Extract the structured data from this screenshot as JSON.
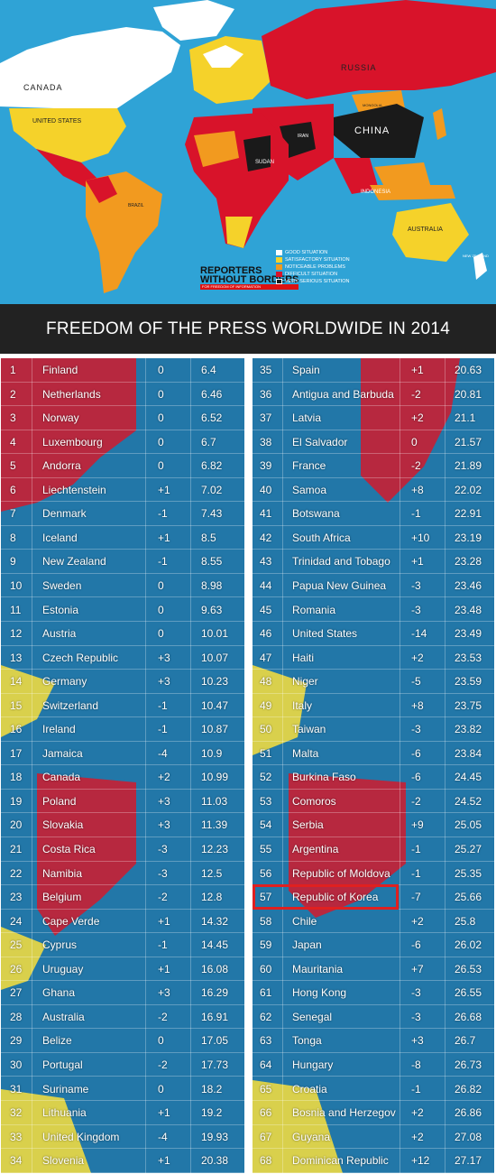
{
  "map": {
    "labels": {
      "russia": "RUSSIA",
      "canada": "CANADA",
      "united_states": "UNITED STATES",
      "china": "CHINA",
      "australia": "AUSTRALIA",
      "indonesia": "INDONESIA",
      "brazil": "BRAZIL",
      "mongolia": "MONGOLIA",
      "sudan": "SUDAN",
      "iran": "IRAN",
      "new_zealand": "NEW ZEALAND"
    },
    "legend": [
      {
        "label": "GOOD SITUATION",
        "color": "#ffffff"
      },
      {
        "label": "SATISFACTORY SITUATION",
        "color": "#f5d22a"
      },
      {
        "label": "NOTICEABLE PROBLEMS",
        "color": "#f29a1f"
      },
      {
        "label": "DIFFICULT SITUATION",
        "color": "#d8132a"
      },
      {
        "label": "VERY SERIOUS SITUATION",
        "color": "#1a1a1a"
      }
    ],
    "logo_line1": "REPORTERS",
    "logo_line2": "WITHOUT BORDERS",
    "logo_tagline": "FOR FREEDOM OF INFORMATION"
  },
  "banner": {
    "title": "FREEDOM OF THE PRESS WORLDWIDE IN 2014"
  },
  "colors": {
    "table_blue": "#2277a8",
    "highlight": "#e02020",
    "banner_bg": "#222222"
  },
  "left_rows": [
    {
      "rank": "1",
      "country": "Finland",
      "change": "0",
      "score": "6.4"
    },
    {
      "rank": "2",
      "country": "Netherlands",
      "change": "0",
      "score": "6.46"
    },
    {
      "rank": "3",
      "country": "Norway",
      "change": "0",
      "score": "6.52"
    },
    {
      "rank": "4",
      "country": "Luxembourg",
      "change": "0",
      "score": "6.7"
    },
    {
      "rank": "5",
      "country": "Andorra",
      "change": "0",
      "score": "6.82"
    },
    {
      "rank": "6",
      "country": "Liechtenstein",
      "change": "+1",
      "score": "7.02"
    },
    {
      "rank": "7",
      "country": "Denmark",
      "change": "-1",
      "score": "7.43"
    },
    {
      "rank": "8",
      "country": "Iceland",
      "change": "+1",
      "score": "8.5"
    },
    {
      "rank": "9",
      "country": "New Zealand",
      "change": "-1",
      "score": "8.55"
    },
    {
      "rank": "10",
      "country": "Sweden",
      "change": "0",
      "score": "8.98"
    },
    {
      "rank": "11",
      "country": "Estonia",
      "change": "0",
      "score": "9.63"
    },
    {
      "rank": "12",
      "country": "Austria",
      "change": "0",
      "score": "10.01"
    },
    {
      "rank": "13",
      "country": "Czech Republic",
      "change": "+3",
      "score": "10.07"
    },
    {
      "rank": "14",
      "country": "Germany",
      "change": "+3",
      "score": "10.23"
    },
    {
      "rank": "15",
      "country": "Switzerland",
      "change": "-1",
      "score": "10.47"
    },
    {
      "rank": "16",
      "country": "Ireland",
      "change": "-1",
      "score": "10.87"
    },
    {
      "rank": "17",
      "country": "Jamaica",
      "change": "-4",
      "score": "10.9"
    },
    {
      "rank": "18",
      "country": "Canada",
      "change": "+2",
      "score": "10.99"
    },
    {
      "rank": "19",
      "country": "Poland",
      "change": "+3",
      "score": "11.03"
    },
    {
      "rank": "20",
      "country": "Slovakia",
      "change": "+3",
      "score": "11.39"
    },
    {
      "rank": "21",
      "country": "Costa Rica",
      "change": "-3",
      "score": "12.23"
    },
    {
      "rank": "22",
      "country": "Namibia",
      "change": "-3",
      "score": "12.5"
    },
    {
      "rank": "23",
      "country": "Belgium",
      "change": "-2",
      "score": "12.8"
    },
    {
      "rank": "24",
      "country": "Cape Verde",
      "change": "+1",
      "score": "14.32"
    },
    {
      "rank": "25",
      "country": "Cyprus",
      "change": "-1",
      "score": "14.45"
    },
    {
      "rank": "26",
      "country": "Uruguay",
      "change": "+1",
      "score": "16.08"
    },
    {
      "rank": "27",
      "country": "Ghana",
      "change": "+3",
      "score": "16.29"
    },
    {
      "rank": "28",
      "country": "Australia",
      "change": "-2",
      "score": "16.91"
    },
    {
      "rank": "29",
      "country": "Belize",
      "change": "0",
      "score": "17.05"
    },
    {
      "rank": "30",
      "country": "Portugal",
      "change": "-2",
      "score": "17.73"
    },
    {
      "rank": "31",
      "country": "Suriname",
      "change": "0",
      "score": "18.2"
    },
    {
      "rank": "32",
      "country": "Lithuania",
      "change": "+1",
      "score": "19.2"
    },
    {
      "rank": "33",
      "country": "United Kingdom",
      "change": "-4",
      "score": "19.93"
    },
    {
      "rank": "34",
      "country": "Slovenia",
      "change": "+1",
      "score": "20.38"
    }
  ],
  "right_rows": [
    {
      "rank": "35",
      "country": "Spain",
      "change": "+1",
      "score": "20.63"
    },
    {
      "rank": "36",
      "country": "Antigua and Barbuda",
      "change": "-2",
      "score": "20.81"
    },
    {
      "rank": "37",
      "country": "Latvia",
      "change": "+2",
      "score": "21.1"
    },
    {
      "rank": "38",
      "country": "El Salvador",
      "change": "0",
      "score": "21.57"
    },
    {
      "rank": "39",
      "country": "France",
      "change": "-2",
      "score": "21.89"
    },
    {
      "rank": "40",
      "country": "Samoa",
      "change": "+8",
      "score": "22.02"
    },
    {
      "rank": "41",
      "country": "Botswana",
      "change": "-1",
      "score": "22.91"
    },
    {
      "rank": "42",
      "country": "South Africa",
      "change": "+10",
      "score": "23.19"
    },
    {
      "rank": "43",
      "country": "Trinidad and Tobago",
      "change": "+1",
      "score": "23.28"
    },
    {
      "rank": "44",
      "country": "Papua New Guinea",
      "change": "-3",
      "score": "23.46"
    },
    {
      "rank": "45",
      "country": "Romania",
      "change": "-3",
      "score": "23.48"
    },
    {
      "rank": "46",
      "country": "United States",
      "change": "-14",
      "score": "23.49"
    },
    {
      "rank": "47",
      "country": "Haiti",
      "change": "+2",
      "score": "23.53"
    },
    {
      "rank": "48",
      "country": "Niger",
      "change": "-5",
      "score": "23.59"
    },
    {
      "rank": "49",
      "country": "Italy",
      "change": "+8",
      "score": "23.75"
    },
    {
      "rank": "50",
      "country": "Taiwan",
      "change": "-3",
      "score": "23.82"
    },
    {
      "rank": "51",
      "country": "Malta",
      "change": "-6",
      "score": "23.84"
    },
    {
      "rank": "52",
      "country": "Burkina Faso",
      "change": "-6",
      "score": "24.45"
    },
    {
      "rank": "53",
      "country": "Comoros",
      "change": "-2",
      "score": "24.52"
    },
    {
      "rank": "54",
      "country": "Serbia",
      "change": "+9",
      "score": "25.05"
    },
    {
      "rank": "55",
      "country": "Argentina",
      "change": "-1",
      "score": "25.27"
    },
    {
      "rank": "56",
      "country": "Republic of Moldova",
      "change": "-1",
      "score": "25.35"
    },
    {
      "rank": "57",
      "country": "Republic of Korea",
      "change": "-7",
      "score": "25.66"
    },
    {
      "rank": "58",
      "country": "Chile",
      "change": "+2",
      "score": "25.8"
    },
    {
      "rank": "59",
      "country": "Japan",
      "change": "-6",
      "score": "26.02"
    },
    {
      "rank": "60",
      "country": "Mauritania",
      "change": "+7",
      "score": "26.53"
    },
    {
      "rank": "61",
      "country": "Hong Kong",
      "change": "-3",
      "score": "26.55"
    },
    {
      "rank": "62",
      "country": "Senegal",
      "change": "-3",
      "score": "26.68"
    },
    {
      "rank": "63",
      "country": "Tonga",
      "change": "+3",
      "score": "26.7"
    },
    {
      "rank": "64",
      "country": "Hungary",
      "change": "-8",
      "score": "26.73"
    },
    {
      "rank": "65",
      "country": "Croatia",
      "change": "-1",
      "score": "26.82"
    },
    {
      "rank": "66",
      "country": "Bosnia and Herzegov",
      "change": "+2",
      "score": "26.86"
    },
    {
      "rank": "67",
      "country": "Guyana",
      "change": "+2",
      "score": "27.08"
    },
    {
      "rank": "68",
      "country": "Dominican Republic",
      "change": "+12",
      "score": "27.17"
    }
  ]
}
